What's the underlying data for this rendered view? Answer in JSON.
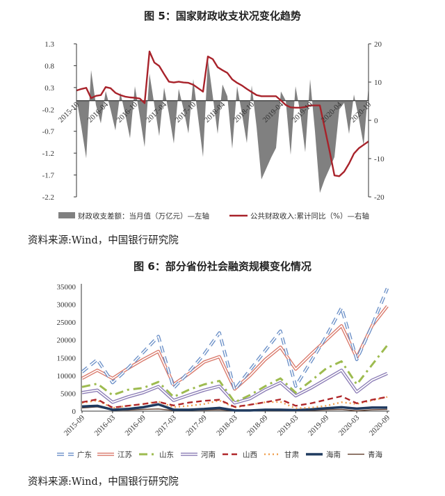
{
  "figure5": {
    "title": "图 5：国家财政收支状况变化趋势",
    "source": "资料来源:Wind，中国银行研究院"
  },
  "figure6": {
    "title": "图 6：部分省份社会融资规模变化情况",
    "source": "资料来源:Wind，中国银行研究院"
  },
  "chart_data": [
    {
      "type": "area+line",
      "title": "图 5：国家财政收支状况变化趋势",
      "x": [
        "2015-10",
        "2015-11",
        "2015-12",
        "2016-01",
        "2016-02",
        "2016-03",
        "2016-04",
        "2016-05",
        "2016-06",
        "2016-07",
        "2016-08",
        "2016-09",
        "2016-10",
        "2016-11",
        "2016-12",
        "2017-01",
        "2017-02",
        "2017-03",
        "2017-04",
        "2017-05",
        "2017-06",
        "2017-07",
        "2017-08",
        "2017-09",
        "2017-10",
        "2017-11",
        "2017-12",
        "2018-01",
        "2018-02",
        "2018-03",
        "2018-04",
        "2018-05",
        "2018-06",
        "2018-07",
        "2018-08",
        "2018-09",
        "2018-10",
        "2018-11",
        "2018-12",
        "2019-01",
        "2019-02",
        "2019-03",
        "2019-04",
        "2019-05",
        "2019-06",
        "2019-07",
        "2019-08",
        "2019-09",
        "2019-10",
        "2019-11",
        "2019-12",
        "2020-01",
        "2020-02",
        "2020-03",
        "2020-04",
        "2020-05",
        "2020-06",
        "2020-07",
        "2020-08",
        "2020-09",
        "2020-10"
      ],
      "xticks": [
        "2015-10",
        "2016-04",
        "2016-10",
        "2017-04",
        "2017-10",
        "2018-04",
        "2018-10",
        "2019-04",
        "2019-10",
        "2020-04",
        "2020-10"
      ],
      "left_axis": {
        "ticks": [
          "1.3",
          "0.8",
          "0.3",
          "-0.2",
          "-0.7",
          "-1.2",
          "-1.7",
          "-2.2"
        ],
        "ylim": [
          -2.2,
          1.3
        ]
      },
      "right_axis": {
        "ticks": [
          "20",
          "10",
          "0",
          "-10",
          "-20"
        ],
        "ylim": [
          -20,
          20
        ]
      },
      "series": [
        {
          "name": "财政收支差额：当月值（万亿元）—左轴",
          "axis": "left",
          "kind": "area",
          "color": "#808080",
          "values": [
            0.05,
            -0.6,
            -1.32,
            0.7,
            -0.1,
            -0.52,
            0.22,
            -0.2,
            -0.68,
            0.19,
            -0.3,
            -0.86,
            0.33,
            -0.35,
            -1.06,
            0.62,
            -0.1,
            -0.81,
            0.3,
            -0.3,
            -0.98,
            0.27,
            -0.2,
            -0.75,
            0.49,
            -0.4,
            -1.29,
            0.94,
            0.1,
            -0.76,
            0.37,
            0.1,
            -1.1,
            0.33,
            -0.3,
            -0.97,
            0.35,
            -0.6,
            -1.8,
            -1.55,
            -1.3,
            -1.08,
            0.21,
            0.0,
            -1.24,
            0.33,
            -0.3,
            -1.18,
            0.49,
            -0.7,
            -2.11,
            -1.8,
            -1.55,
            -1.29,
            -0.2,
            -0.05,
            -0.76,
            0.14,
            -0.4,
            -1.02,
            0.33
          ]
        },
        {
          "name": "公共财政收入:累计同比（%）—右轴",
          "axis": "right",
          "kind": "line",
          "color": "#a8222a",
          "values": [
            7.8,
            8.2,
            8.5,
            5.8,
            6.4,
            6.6,
            8.7,
            8.4,
            7.2,
            6.6,
            6.2,
            6.0,
            5.9,
            5.7,
            4.5,
            18.0,
            15.1,
            14.2,
            12.1,
            10.1,
            9.9,
            10.1,
            9.9,
            9.8,
            9.3,
            8.4,
            7.5,
            16.7,
            16.0,
            13.9,
            13.1,
            12.4,
            10.7,
            9.8,
            9.1,
            8.2,
            7.4,
            6.6,
            6.3,
            6.3,
            6.3,
            6.3,
            5.2,
            4.0,
            3.4,
            3.3,
            3.3,
            3.5,
            3.9,
            3.9,
            3.9,
            -2.0,
            -8.0,
            -14.4,
            -14.6,
            -13.4,
            -11.3,
            -8.7,
            -7.3,
            -6.4,
            -5.5
          ]
        }
      ]
    },
    {
      "type": "line",
      "title": "图 6：部分省份社会融资规模变化情况",
      "x": [
        "2015-09",
        "2015-12",
        "2016-03",
        "2016-06",
        "2016-09",
        "2016-12",
        "2017-03",
        "2017-06",
        "2017-09",
        "2017-12",
        "2018-03",
        "2018-06",
        "2018-09",
        "2018-12",
        "2019-03",
        "2019-06",
        "2019-09",
        "2019-12",
        "2020-03",
        "2020-06",
        "2020-09"
      ],
      "xticks": [
        "2015-09",
        "2016-03",
        "2016-09",
        "2017-03",
        "2017-09",
        "2018-03",
        "2018-09",
        "2019-03",
        "2019-09",
        "2020-03",
        "2020-09"
      ],
      "yticks": [
        "35000",
        "30000",
        "25000",
        "20000",
        "15000",
        "10000",
        "5000",
        "0"
      ],
      "ylim": [
        0,
        35000
      ],
      "legend": "bottom",
      "series": [
        {
          "name": "广东",
          "color": "#6a8fc7",
          "style": "double-dashed",
          "values": [
            11000,
            14500,
            8000,
            12000,
            16500,
            21000,
            6500,
            11000,
            16000,
            22000,
            6000,
            11500,
            17000,
            22500,
            7000,
            14000,
            21000,
            29000,
            14500,
            24000,
            34500
          ]
        },
        {
          "name": "江苏",
          "color": "#d9786a",
          "style": "double",
          "values": [
            9200,
            11500,
            9200,
            12000,
            14500,
            16800,
            7500,
            10500,
            13800,
            15300,
            6200,
            10000,
            14500,
            18000,
            11800,
            16000,
            20000,
            24000,
            15000,
            24000,
            29500
          ]
        },
        {
          "name": "山东",
          "color": "#9dbb4f",
          "style": "dash-dot",
          "values": [
            6800,
            7700,
            4500,
            6000,
            6500,
            8200,
            4000,
            6000,
            7500,
            8500,
            2500,
            4500,
            7000,
            9200,
            5200,
            8500,
            12000,
            14000,
            7500,
            13000,
            18500
          ]
        },
        {
          "name": "河南",
          "color": "#8a7bb5",
          "style": "double",
          "values": [
            5200,
            5900,
            2500,
            4000,
            5200,
            6900,
            3000,
            4500,
            5900,
            7000,
            2300,
            3500,
            6000,
            8000,
            4300,
            6500,
            9000,
            11500,
            5400,
            8700,
            10600
          ]
        },
        {
          "name": "山西",
          "color": "#b0272a",
          "style": "dashed",
          "values": [
            2500,
            3300,
            1000,
            1500,
            2000,
            2600,
            1600,
            2400,
            2900,
            3200,
            1200,
            1800,
            2500,
            3300,
            1500,
            2200,
            3200,
            4200,
            2200,
            3200,
            4000
          ]
        },
        {
          "name": "甘肃",
          "color": "#f0a050",
          "style": "dotted",
          "values": [
            2300,
            3000,
            900,
            1500,
            2000,
            2700,
            1100,
            1500,
            2000,
            3000,
            1000,
            1800,
            2500,
            2600,
            800,
            1000,
            1500,
            2500,
            2000,
            3000,
            4000
          ]
        },
        {
          "name": "海南",
          "color": "#1f3a5f",
          "style": "thick",
          "values": [
            1300,
            1500,
            400,
            600,
            1100,
            1900,
            400,
            400,
            600,
            900,
            200,
            200,
            400,
            400,
            300,
            500,
            800,
            1100,
            700,
            1000,
            1000
          ]
        },
        {
          "name": "青海",
          "color": "#6b4a3a",
          "style": "thin",
          "values": [
            900,
            1200,
            300,
            300,
            500,
            600,
            200,
            300,
            300,
            400,
            100,
            100,
            200,
            200,
            100,
            200,
            400,
            500,
            100,
            400,
            500
          ]
        }
      ]
    }
  ]
}
